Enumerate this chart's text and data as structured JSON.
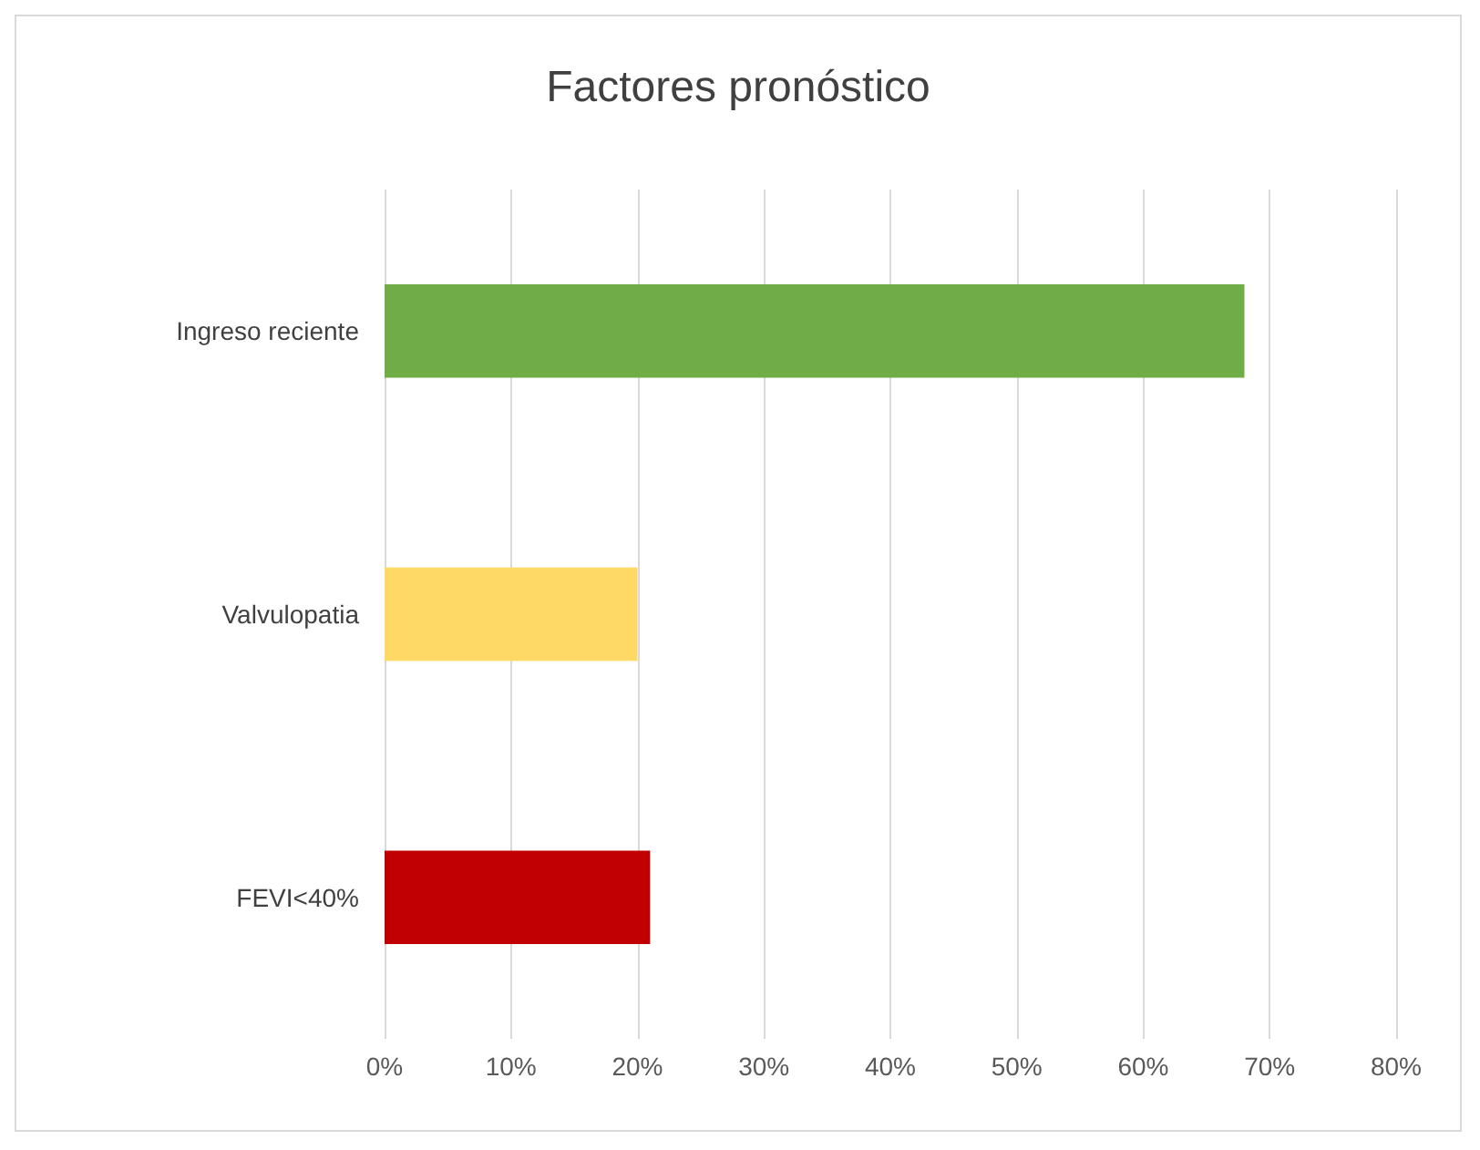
{
  "chart_data": {
    "type": "bar",
    "orientation": "horizontal",
    "title": "Factores pronóstico",
    "categories": [
      "Ingreso reciente",
      "Valvulopatia",
      "FEVI<40%"
    ],
    "values": [
      68,
      20,
      21
    ],
    "colors": [
      "#70ad47",
      "#ffd966",
      "#c00000"
    ],
    "xlim": [
      0,
      80
    ],
    "xticks": [
      {
        "value": 0,
        "label": "0%"
      },
      {
        "value": 10,
        "label": "10%"
      },
      {
        "value": 20,
        "label": "20%"
      },
      {
        "value": 30,
        "label": "30%"
      },
      {
        "value": 40,
        "label": "40%"
      },
      {
        "value": 50,
        "label": "50%"
      },
      {
        "value": 60,
        "label": "60%"
      },
      {
        "value": 70,
        "label": "70%"
      },
      {
        "value": 80,
        "label": "80%"
      }
    ],
    "grid": "x"
  }
}
